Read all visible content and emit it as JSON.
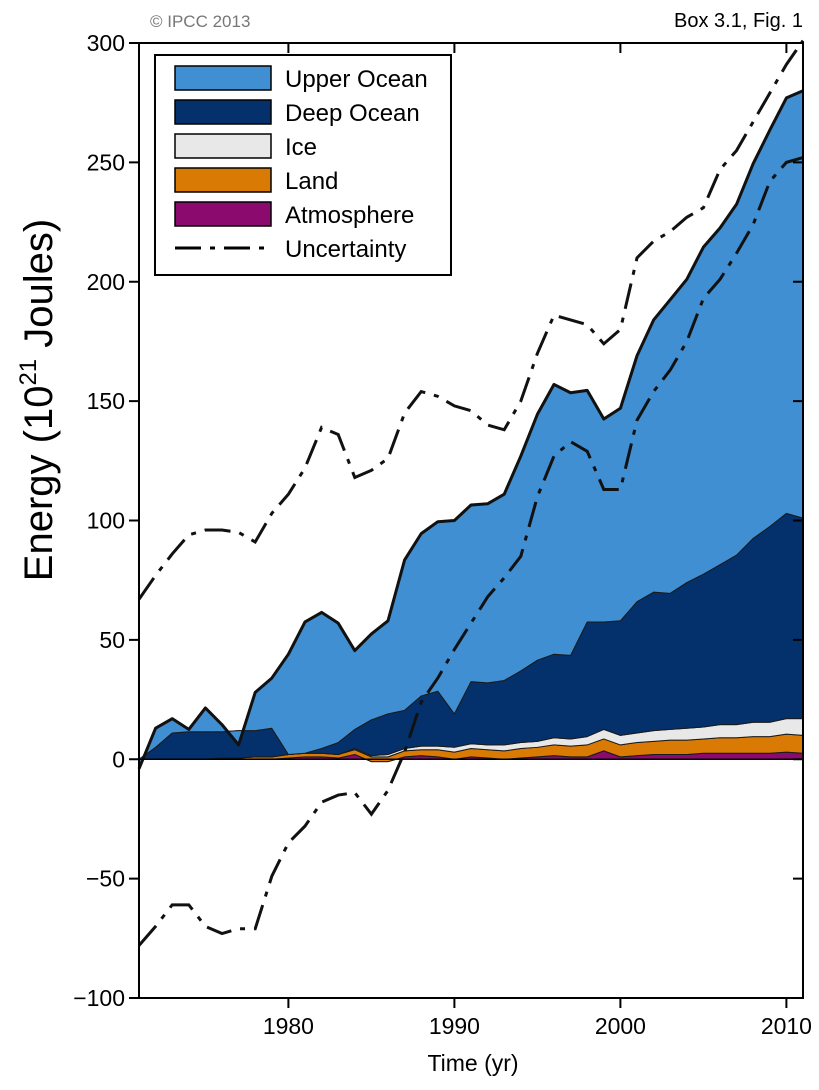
{
  "credit": "© IPCC 2013",
  "figure_ref": "Box 3.1, Fig. 1",
  "chart_data": {
    "type": "area",
    "stacked": true,
    "xlabel": "Time (yr)",
    "ylabel_main": "Energy (10",
    "ylabel_sup": "21",
    "ylabel_tail": " Joules)",
    "xlim": [
      1971,
      2011
    ],
    "ylim": [
      -100,
      300
    ],
    "xticks": [
      1980,
      1990,
      2000,
      2010
    ],
    "yticks": [
      -100,
      -50,
      0,
      50,
      100,
      150,
      200,
      250,
      300
    ],
    "ytick_labels": [
      "−100",
      "−50",
      "0",
      "50",
      "100",
      "150",
      "200",
      "250",
      "300"
    ],
    "grid": false,
    "legend_position": "top-left",
    "x": [
      1971,
      1972,
      1973,
      1974,
      1975,
      1976,
      1977,
      1978,
      1979,
      1980,
      1981,
      1982,
      1983,
      1984,
      1985,
      1986,
      1987,
      1988,
      1989,
      1990,
      1991,
      1992,
      1993,
      1994,
      1995,
      1996,
      1997,
      1998,
      1999,
      2000,
      2001,
      2002,
      2003,
      2004,
      2005,
      2006,
      2007,
      2008,
      2009,
      2010,
      2011
    ],
    "series": [
      {
        "name": "Atmosphere",
        "color": "#8b0a6e",
        "values": [
          0,
          0,
          0,
          0,
          0,
          0,
          0,
          0,
          0,
          0.5,
          1,
          1,
          0.5,
          2,
          -1,
          -1,
          1,
          1.5,
          1,
          0,
          1,
          0.5,
          0,
          0.5,
          1,
          1.5,
          1,
          1,
          3.5,
          1,
          1.5,
          2,
          2,
          2,
          2.5,
          2.5,
          2.5,
          2.5,
          2.5,
          3,
          2.5
        ]
      },
      {
        "name": "Land",
        "color": "#d97a05",
        "values": [
          0,
          0,
          0,
          0,
          0,
          0.5,
          0.5,
          1,
          1,
          1.5,
          1.5,
          1.5,
          1.5,
          2,
          2,
          2,
          2.5,
          2.5,
          3,
          3,
          3.5,
          3.5,
          3.5,
          4,
          4,
          4.5,
          4.5,
          5,
          5,
          5,
          5.5,
          5.5,
          6,
          6,
          6,
          6.5,
          6.5,
          7,
          7,
          7.5,
          7.5
        ]
      },
      {
        "name": "Ice",
        "color": "#e8e8e8",
        "values": [
          0,
          0,
          0,
          0,
          0,
          0,
          0,
          0,
          0,
          0,
          0,
          0,
          0,
          0.5,
          0.5,
          1,
          1,
          1.5,
          1.5,
          2,
          2,
          2,
          2.5,
          2.5,
          2.5,
          3,
          3,
          3.5,
          4,
          4,
          4,
          4.5,
          4.5,
          5,
          5,
          5.5,
          5.5,
          6,
          6,
          6.5,
          7
        ]
      },
      {
        "name": "Deep Ocean",
        "color": "#04306b",
        "values": [
          0,
          5,
          11,
          11.5,
          11.5,
          11,
          11.5,
          11,
          12,
          0,
          0,
          2,
          5,
          8,
          15,
          17,
          16,
          21,
          23,
          14,
          26,
          26,
          27,
          30,
          34,
          35,
          35,
          48,
          45,
          48,
          55,
          58,
          57,
          61,
          64,
          67,
          71,
          77,
          82,
          86,
          84
        ]
      },
      {
        "name": "Upper Ocean",
        "color": "#3f8fd2",
        "values": [
          -4,
          8,
          6,
          1,
          10,
          3,
          -6,
          16,
          21,
          42,
          55,
          57,
          50,
          33,
          36,
          39,
          63,
          68,
          71,
          81,
          74,
          75,
          78,
          90,
          103,
          113,
          110,
          97,
          85,
          89,
          103,
          114,
          123,
          127,
          137,
          141,
          147,
          157,
          166,
          174,
          179
        ]
      }
    ],
    "uncertainty": {
      "name": "Uncertainty",
      "upper": [
        67,
        77,
        86,
        94,
        96,
        96,
        95,
        91,
        103,
        111,
        122,
        139,
        136,
        118,
        121,
        126,
        145,
        154,
        152,
        148,
        146,
        140,
        138,
        150,
        170,
        186,
        184,
        182,
        174,
        180,
        210,
        217,
        221,
        227,
        231,
        247,
        255,
        267,
        279,
        291,
        301
      ],
      "lower": [
        -78,
        -70,
        -61,
        -61,
        -70,
        -73,
        -71,
        -71,
        -49,
        -35,
        -28,
        -18,
        -15,
        -14,
        -23,
        -13,
        3,
        24,
        34,
        46,
        57,
        68,
        76,
        85,
        110,
        127,
        133,
        129,
        113,
        113,
        142,
        154,
        163,
        175,
        193,
        201,
        212,
        224,
        242,
        250,
        252
      ]
    }
  }
}
